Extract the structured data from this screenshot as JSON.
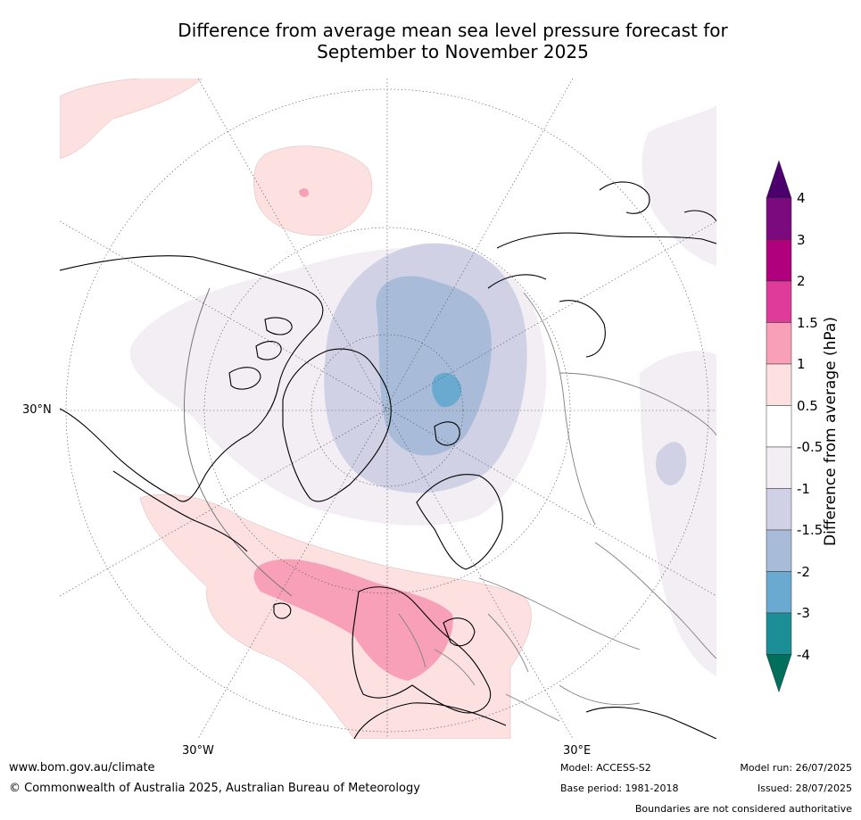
{
  "title_line1": "Difference from average mean sea level pressure forecast for",
  "title_line2": "September to November 2025",
  "map": {
    "lat_labels": [
      "30°N"
    ],
    "lon_labels": [
      "30°W",
      "30°E"
    ],
    "land_color": "#ffffff",
    "coast_color": "#000000",
    "border_color": "#808080"
  },
  "colorbar": {
    "title": "Difference from average (hPa)",
    "boundaries": [
      "4",
      "3",
      "2",
      "1.5",
      "1",
      "0.5",
      "-0.5",
      "-1",
      "-1.5",
      "-2",
      "-3",
      "-4"
    ],
    "colors": [
      "#4b006e",
      "#7c0a7f",
      "#b0007e",
      "#de3b9a",
      "#f7a0b8",
      "#fde0e0",
      "#ffffff",
      "#f2eef4",
      "#d1d1e6",
      "#a8bcd9",
      "#6aaad0",
      "#1c8f96",
      "#00705c"
    ]
  },
  "footer": {
    "website": "www.bom.gov.au/climate",
    "copyright": "© Commonwealth of Australia 2025, Australian Bureau of Meteorology",
    "model": "Model: ACCESS-S2",
    "base_period": "Base period: 1981-2018",
    "model_run": "Model run: 26/07/2025",
    "issued": "Issued: 28/07/2025",
    "disclaimer": "Boundaries are not considered authoritative"
  }
}
